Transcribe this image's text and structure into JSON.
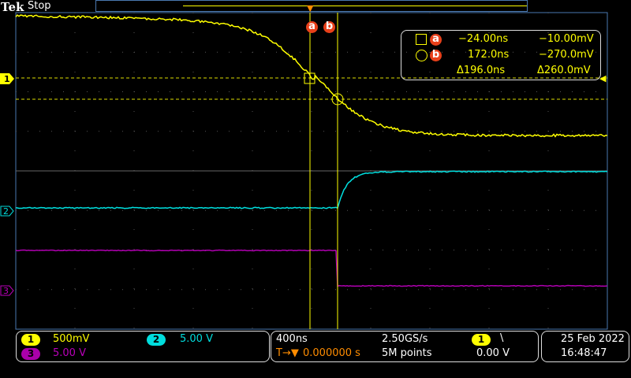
{
  "header": {
    "logo": "Tek",
    "status": "Stop"
  },
  "cursors": {
    "a_label": "a",
    "b_label": "b"
  },
  "measurement": {
    "a": {
      "time": "−24.00ns",
      "value": "−10.00mV"
    },
    "b": {
      "time": "172.0ns",
      "value": "−270.0mV"
    },
    "delta": {
      "time": "Δ196.0ns",
      "value": "Δ260.0mV"
    }
  },
  "channels": [
    {
      "id": "1",
      "scale": "500mV",
      "color": "#ffff00"
    },
    {
      "id": "2",
      "scale": "5.00 V",
      "color": "#00e0e0"
    },
    {
      "id": "3",
      "scale": "5.00 V",
      "color": "#b000b0"
    }
  ],
  "timebase": {
    "scale": "400ns",
    "trigger_pos": "0.000000 s",
    "sample_rate": "2.50GS/s",
    "record": "5M points"
  },
  "trigger": {
    "source": "1",
    "slope": "\\",
    "level": "0.00 V"
  },
  "datetime": {
    "date": "25 Feb  2022",
    "time": "16:48:47"
  },
  "colors": {
    "cursor": "#ffff00",
    "trigger": "#ff8c00",
    "grid_border": "#4a78b0"
  }
}
